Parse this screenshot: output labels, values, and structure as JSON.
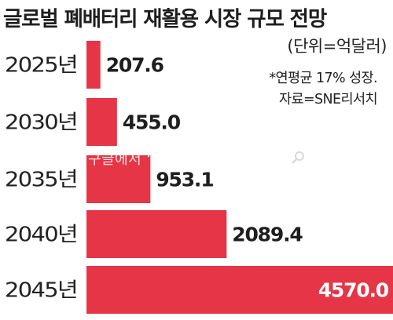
{
  "title": "글로벌 폐배터리 재활용 시장 규모 전망",
  "unit_note": "(단위=억달러)",
  "footnote_growth": "*연평균 17% 성장.",
  "footnote_source": "자료=SNE리서치",
  "watermark": "구글에서 “브이브이아이피”",
  "colors": {
    "bar": "#e63546",
    "text": "#1e1e1e",
    "value_on_bar": "#ffffff"
  },
  "chart_data": {
    "type": "bar",
    "orientation": "horizontal",
    "title": "글로벌 폐배터리 재활용 시장 규모 전망",
    "unit": "(단위=억달러)",
    "categories": [
      "2025년",
      "2030년",
      "2035년",
      "2040년",
      "2045년"
    ],
    "values": [
      207.6,
      455.0,
      953.1,
      2089.4,
      4570.0
    ],
    "value_labels": [
      "207.6",
      "455.0",
      "953.1",
      "2089.4",
      "4570.0"
    ],
    "xlim": [
      0,
      4570.0
    ],
    "grid": false,
    "legend": "none"
  }
}
